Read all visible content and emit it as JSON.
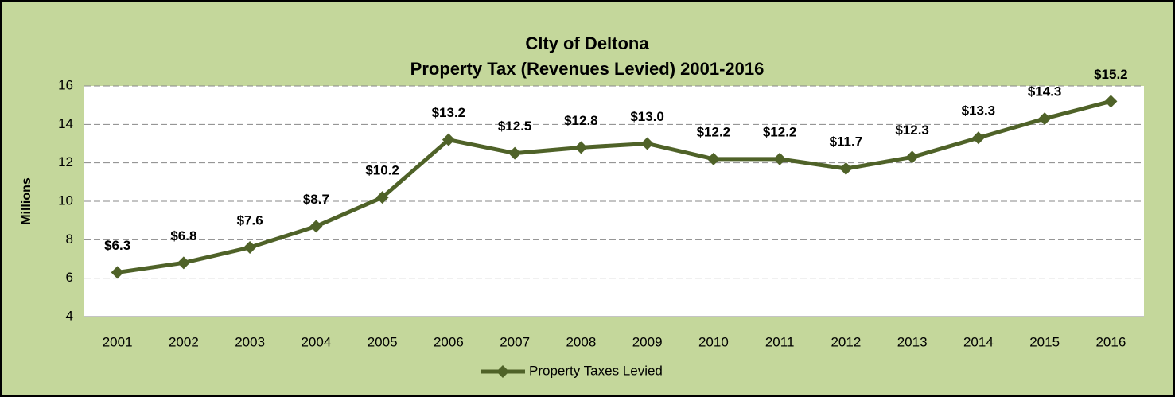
{
  "chart_data": {
    "type": "line",
    "title": "CIty of Deltona",
    "subtitle": "Property Tax (Revenues Levied) 2001-2016",
    "y_label": "Millions",
    "categories": [
      "2001",
      "2002",
      "2003",
      "2004",
      "2005",
      "2006",
      "2007",
      "2008",
      "2009",
      "2010",
      "2011",
      "2012",
      "2013",
      "2014",
      "2015",
      "2016"
    ],
    "series": [
      {
        "name": "Property Taxes Levied",
        "color": "#4f6228",
        "values": [
          6.3,
          6.8,
          7.6,
          8.7,
          10.2,
          13.2,
          12.5,
          12.8,
          13.0,
          12.2,
          12.2,
          11.7,
          12.3,
          13.3,
          14.3,
          15.2
        ],
        "value_labels": [
          "$6.3",
          "$6.8",
          "$7.6",
          "$8.7",
          "$10.2",
          "$13.2",
          "$12.5",
          "$12.8",
          "$13.0",
          "$12.2",
          "$12.2",
          "$11.7",
          "$12.3",
          "$13.3",
          "$14.3",
          "$15.2"
        ]
      }
    ],
    "ylim": [
      4,
      16
    ],
    "yticks": [
      4,
      6,
      8,
      10,
      12,
      14,
      16
    ],
    "grid": true,
    "legend": "bottom"
  }
}
